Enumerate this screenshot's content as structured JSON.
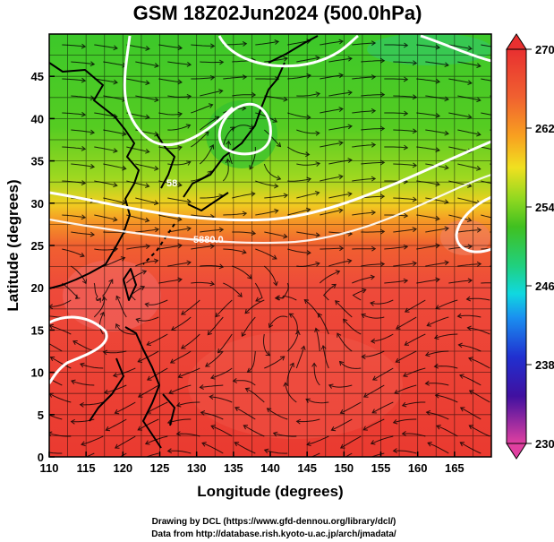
{
  "title": "GSM 18Z02Jun2024 (500.0hPa)",
  "xaxis": {
    "label": "Longitude (degrees)",
    "range": [
      110,
      170
    ],
    "ticks": [
      "110",
      "115",
      "120",
      "125",
      "130",
      "135",
      "140",
      "145",
      "150",
      "155",
      "160",
      "165"
    ]
  },
  "yaxis": {
    "label": "Latitude  (degrees)",
    "range": [
      0,
      50
    ],
    "ticks": [
      "0",
      "5",
      "10",
      "15",
      "20",
      "25",
      "30",
      "35",
      "40",
      "45"
    ]
  },
  "colorbar": {
    "range": [
      230,
      270
    ],
    "ticks": [
      "270",
      "262",
      "254",
      "246",
      "238",
      "230"
    ],
    "colors": [
      "#e040a0",
      "#4010a0",
      "#2030d0",
      "#1a90f0",
      "#10d8e0",
      "#20d080",
      "#40c020",
      "#90d820",
      "#f0e020",
      "#f8a020",
      "#f06030",
      "#e83030"
    ]
  },
  "contour_labels": [
    "5880.0",
    "58"
  ],
  "credits": {
    "line1": "Drawing by DCL (https://www.gfd-dennou.org/library/dcl/)",
    "line2": "Data from http://database.rish.kyoto-u.ac.jp/arch/jmadata/"
  }
}
